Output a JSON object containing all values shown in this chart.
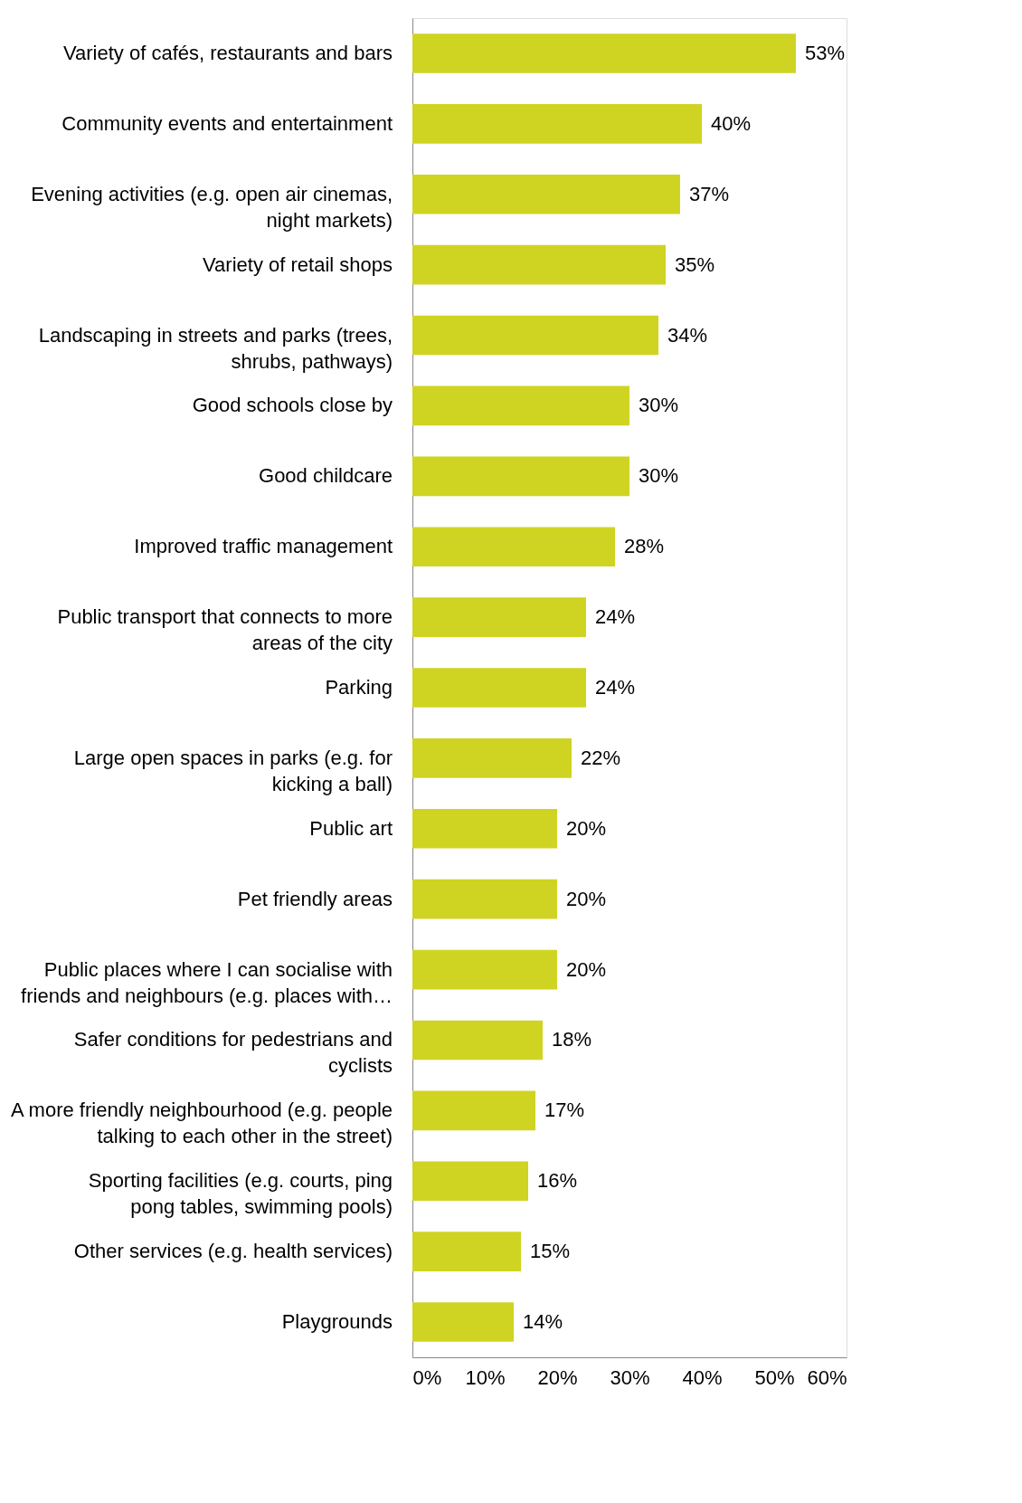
{
  "chart_data": {
    "type": "bar",
    "orientation": "horizontal",
    "categories": [
      "Variety of cafés, restaurants and bars",
      "Community events and entertainment",
      "Evening activities (e.g. open air cinemas, night markets)",
      "Variety of retail shops",
      "Landscaping in streets and parks (trees, shrubs, pathways)",
      "Good schools close by",
      "Good childcare",
      "Improved traffic management",
      "Public transport that connects to more areas of the city",
      "Parking",
      "Large open spaces in parks (e.g. for kicking a ball)",
      "Public art",
      "Pet friendly areas",
      "Public places where I can socialise with friends and neighbours (e.g. places with…",
      "Safer conditions for pedestrians and cyclists",
      "A more friendly neighbourhood (e.g. people talking to each other in the street)",
      "Sporting facilities (e.g. courts, ping pong tables, swimming pools)",
      "Other services (e.g. health services)",
      "Playgrounds"
    ],
    "values": [
      53,
      40,
      37,
      35,
      34,
      30,
      30,
      28,
      24,
      24,
      22,
      20,
      20,
      20,
      18,
      17,
      16,
      15,
      14
    ],
    "value_labels": [
      "53%",
      "40%",
      "37%",
      "35%",
      "34%",
      "30%",
      "30%",
      "28%",
      "24%",
      "24%",
      "22%",
      "20%",
      "20%",
      "20%",
      "18%",
      "17%",
      "16%",
      "15%",
      "14%"
    ],
    "color": "#cfd422",
    "xlim": [
      0,
      60
    ],
    "xticks": [
      {
        "value": 0,
        "label": "0%"
      },
      {
        "value": 10,
        "label": "10%"
      },
      {
        "value": 20,
        "label": "20%"
      },
      {
        "value": 30,
        "label": "30%"
      },
      {
        "value": 40,
        "label": "40%"
      },
      {
        "value": 50,
        "label": "50%"
      },
      {
        "value": 60,
        "label": "60%"
      }
    ],
    "grid": false
  }
}
